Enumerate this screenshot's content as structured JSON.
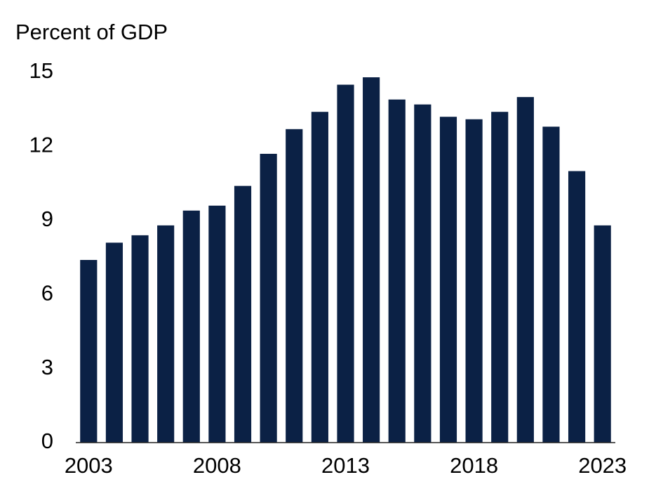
{
  "chart_data": {
    "type": "bar",
    "y_axis_label": "Percent of GDP",
    "categories": [
      "2003",
      null,
      null,
      null,
      null,
      "2008",
      null,
      null,
      null,
      null,
      "2013",
      null,
      null,
      null,
      null,
      "2018",
      null,
      null,
      null,
      null,
      "2023"
    ],
    "values": [
      7.4,
      8.1,
      8.4,
      8.8,
      9.4,
      9.6,
      10.4,
      11.7,
      12.7,
      13.4,
      14.5,
      14.8,
      13.9,
      13.7,
      13.2,
      13.1,
      13.4,
      14.0,
      12.8,
      11.0,
      8.8
    ],
    "color": "#0b2145",
    "ylim": [
      0,
      15
    ],
    "yticks": [
      0,
      3,
      6,
      9,
      12,
      15
    ],
    "grid": false
  }
}
